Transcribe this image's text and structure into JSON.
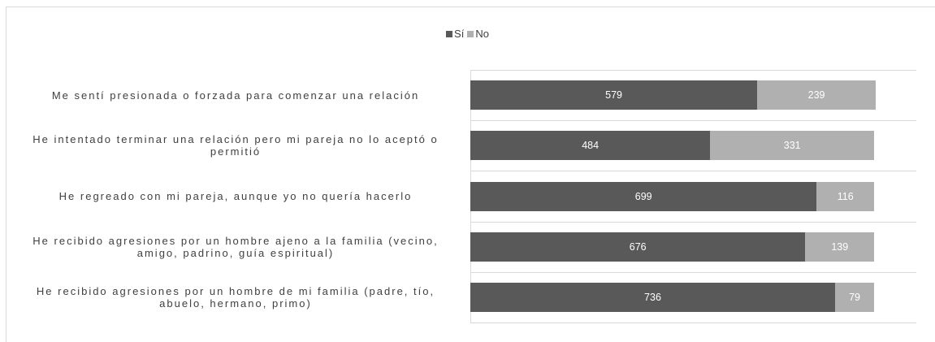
{
  "chart_data": {
    "type": "bar",
    "orientation": "horizontal",
    "stacked": true,
    "categories": [
      "Me sentí presionada o forzada para comenzar una relación",
      "He intentado terminar una relación pero mi pareja no lo aceptó o permitió",
      "He regreado con mi pareja, aunque yo no quería hacerlo",
      "He recibido agresiones por un hombre ajeno a la familia (vecino, amigo, padrino, guía espiritual)",
      "He recibido agresiones por un hombre de mi familia (padre, tío, abuelo, hermano, primo)"
    ],
    "series": [
      {
        "name": "Sí",
        "color": "#595959",
        "values": [
          579,
          484,
          699,
          676,
          736
        ]
      },
      {
        "name": "No",
        "color": "#b0b0b0",
        "values": [
          239,
          331,
          116,
          139,
          79
        ]
      }
    ],
    "xlim": [
      0,
      900
    ],
    "legend": "top"
  }
}
